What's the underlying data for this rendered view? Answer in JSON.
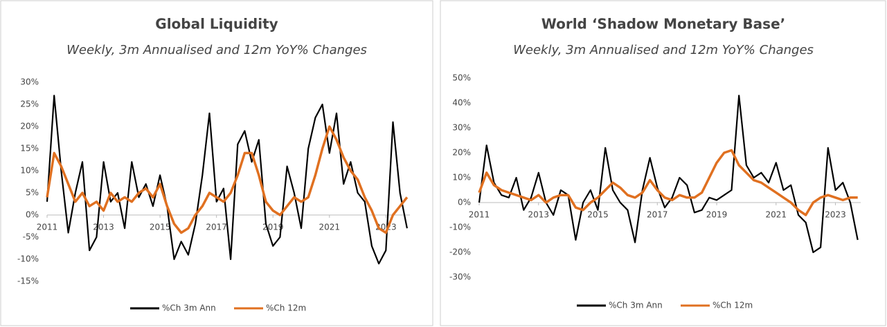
{
  "chart_data": [
    {
      "type": "line",
      "title": "Global Liquidity",
      "subtitle": "Weekly, 3m Annualised and 12m YoY% Changes",
      "x": [
        2011,
        2011.25,
        2011.5,
        2011.75,
        2012,
        2012.25,
        2012.5,
        2012.75,
        2013,
        2013.25,
        2013.5,
        2013.75,
        2014,
        2014.25,
        2014.5,
        2014.75,
        2015,
        2015.25,
        2015.5,
        2015.75,
        2016,
        2016.25,
        2016.5,
        2016.75,
        2017,
        2017.25,
        2017.5,
        2017.75,
        2018,
        2018.25,
        2018.5,
        2018.75,
        2019,
        2019.25,
        2019.5,
        2019.75,
        2020,
        2020.25,
        2020.5,
        2020.75,
        2021,
        2021.25,
        2021.5,
        2021.75,
        2022,
        2022.25,
        2022.5,
        2022.75,
        2023,
        2023.25,
        2023.5,
        2023.75
      ],
      "series": [
        {
          "name": "%Ch 3m Ann",
          "color": "#000000",
          "values": [
            3,
            27,
            10,
            -4,
            5,
            12,
            -8,
            -5,
            12,
            3,
            5,
            -3,
            12,
            4,
            7,
            2,
            9,
            2,
            -10,
            -6,
            -9,
            -2,
            9,
            23,
            3,
            6,
            -10,
            16,
            19,
            12,
            17,
            -2,
            -7,
            -5,
            11,
            5,
            -3,
            15,
            22,
            25,
            14,
            23,
            7,
            12,
            5,
            3,
            -7,
            -11,
            -8,
            21,
            5,
            -3
          ]
        },
        {
          "name": "%Ch 12m",
          "color": "#e07020",
          "values": [
            4,
            14,
            11,
            7,
            3,
            5,
            2,
            3,
            1,
            5,
            3,
            4,
            3,
            5,
            6,
            4,
            7,
            2,
            -2,
            -4,
            -3,
            0,
            2,
            5,
            4,
            3,
            5,
            9,
            14,
            14,
            9,
            3,
            1,
            0,
            2,
            4,
            3,
            4,
            9,
            15,
            20,
            17,
            13,
            10,
            8,
            4,
            1,
            -3,
            -4,
            0,
            2,
            4
          ]
        }
      ],
      "xlim": [
        2011,
        2023.85
      ],
      "xticks": [
        2011,
        2013,
        2015,
        2017,
        2019,
        2021,
        2023
      ],
      "ylim": [
        -15,
        30
      ],
      "yticks": [
        {
          "value": -15,
          "label": "-15%"
        },
        {
          "value": -10,
          "label": "-10%"
        },
        {
          "value": -5,
          "label": "-5%"
        },
        {
          "value": 0,
          "label": "0%"
        },
        {
          "value": 5,
          "label": "5%"
        },
        {
          "value": 10,
          "label": "10%"
        },
        {
          "value": 15,
          "label": "15%"
        },
        {
          "value": 20,
          "label": "20%"
        },
        {
          "value": 25,
          "label": "25%"
        },
        {
          "value": 30,
          "label": "30%"
        }
      ],
      "legend": "bottom"
    },
    {
      "type": "line",
      "title": "World ‘Shadow Monetary Base’",
      "subtitle": "Weekly, 3m Annualised and 12m YoY% Changes",
      "x": [
        2011,
        2011.25,
        2011.5,
        2011.75,
        2012,
        2012.25,
        2012.5,
        2012.75,
        2013,
        2013.25,
        2013.5,
        2013.75,
        2014,
        2014.25,
        2014.5,
        2014.75,
        2015,
        2015.25,
        2015.5,
        2015.75,
        2016,
        2016.25,
        2016.5,
        2016.75,
        2017,
        2017.25,
        2017.5,
        2017.75,
        2018,
        2018.25,
        2018.5,
        2018.75,
        2019,
        2019.25,
        2019.5,
        2019.75,
        2020,
        2020.25,
        2020.5,
        2020.75,
        2021,
        2021.25,
        2021.5,
        2021.75,
        2022,
        2022.25,
        2022.5,
        2022.75,
        2023,
        2023.25,
        2023.5,
        2023.75
      ],
      "series": [
        {
          "name": "%Ch 3m Ann",
          "color": "#000000",
          "values": [
            0,
            23,
            8,
            3,
            2,
            10,
            -3,
            2,
            12,
            0,
            -5,
            5,
            3,
            -15,
            0,
            5,
            -3,
            22,
            5,
            0,
            -3,
            -16,
            5,
            18,
            6,
            -2,
            2,
            10,
            7,
            -4,
            -3,
            2,
            1,
            3,
            5,
            43,
            15,
            10,
            12,
            8,
            16,
            5,
            7,
            -5,
            -8,
            -20,
            -18,
            22,
            5,
            8,
            0,
            -15
          ]
        },
        {
          "name": "%Ch 12m",
          "color": "#e07020",
          "values": [
            4,
            12,
            7,
            5,
            4,
            3,
            2,
            1,
            3,
            0,
            2,
            3,
            3,
            -2,
            -3,
            0,
            2,
            5,
            8,
            6,
            3,
            2,
            4,
            9,
            5,
            2,
            1,
            3,
            2,
            2,
            4,
            10,
            16,
            20,
            21,
            15,
            12,
            9,
            8,
            6,
            4,
            2,
            0,
            -3,
            -5,
            0,
            2,
            3,
            2,
            1,
            2,
            2
          ]
        }
      ],
      "xlim": [
        2011,
        2023.85
      ],
      "xticks": [
        2011,
        2013,
        2015,
        2017,
        2019,
        2021,
        2023
      ],
      "ylim": [
        -30,
        50
      ],
      "yticks": [
        {
          "value": -30,
          "label": "-30%"
        },
        {
          "value": -20,
          "label": "-20%"
        },
        {
          "value": -10,
          "label": "-10%"
        },
        {
          "value": 0,
          "label": "0%"
        },
        {
          "value": 10,
          "label": "10%"
        },
        {
          "value": 20,
          "label": "20%"
        },
        {
          "value": 30,
          "label": "30%"
        },
        {
          "value": 40,
          "label": "40%"
        },
        {
          "value": 50,
          "label": "50%"
        }
      ],
      "legend": "bottom"
    }
  ]
}
